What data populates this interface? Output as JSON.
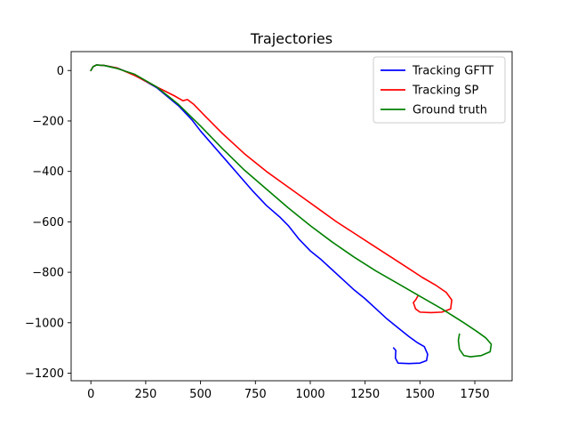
{
  "chart_data": {
    "type": "line",
    "title": "Trajectories",
    "xlabel": "",
    "ylabel": "",
    "xlim": [
      -90,
      1920
    ],
    "ylim": [
      -1230,
      75
    ],
    "xticks": [
      0,
      250,
      500,
      750,
      1000,
      1250,
      1500,
      1750
    ],
    "xtick_labels": [
      "0",
      "250",
      "500",
      "750",
      "1000",
      "1250",
      "1500",
      "1750"
    ],
    "yticks": [
      0,
      -200,
      -400,
      -600,
      -800,
      -1000,
      -1200
    ],
    "ytick_labels": [
      "0",
      "−200",
      "−400",
      "−600",
      "−800",
      "−1000",
      "−1200"
    ],
    "grid": false,
    "legend_position": "top-right",
    "series": [
      {
        "name": "Tracking GFTT",
        "color": "#0000ff",
        "points": [
          [
            0,
            0
          ],
          [
            10,
            15
          ],
          [
            25,
            22
          ],
          [
            60,
            20
          ],
          [
            120,
            10
          ],
          [
            200,
            -18
          ],
          [
            300,
            -68
          ],
          [
            400,
            -140
          ],
          [
            460,
            -195
          ],
          [
            500,
            -240
          ],
          [
            560,
            -300
          ],
          [
            620,
            -360
          ],
          [
            680,
            -420
          ],
          [
            740,
            -480
          ],
          [
            800,
            -535
          ],
          [
            860,
            -580
          ],
          [
            900,
            -615
          ],
          [
            950,
            -670
          ],
          [
            1000,
            -715
          ],
          [
            1050,
            -750
          ],
          [
            1100,
            -790
          ],
          [
            1150,
            -830
          ],
          [
            1200,
            -870
          ],
          [
            1250,
            -905
          ],
          [
            1300,
            -945
          ],
          [
            1350,
            -985
          ],
          [
            1400,
            -1020
          ],
          [
            1450,
            -1055
          ],
          [
            1490,
            -1080
          ],
          [
            1520,
            -1095
          ],
          [
            1535,
            -1125
          ],
          [
            1530,
            -1150
          ],
          [
            1500,
            -1160
          ],
          [
            1450,
            -1162
          ],
          [
            1400,
            -1160
          ],
          [
            1388,
            -1140
          ],
          [
            1390,
            -1110
          ],
          [
            1380,
            -1100
          ]
        ]
      },
      {
        "name": "Tracking SP",
        "color": "#ff0000",
        "points": [
          [
            0,
            0
          ],
          [
            10,
            15
          ],
          [
            25,
            22
          ],
          [
            60,
            20
          ],
          [
            120,
            10
          ],
          [
            200,
            -20
          ],
          [
            300,
            -65
          ],
          [
            380,
            -100
          ],
          [
            420,
            -120
          ],
          [
            440,
            -115
          ],
          [
            470,
            -135
          ],
          [
            520,
            -180
          ],
          [
            600,
            -250
          ],
          [
            700,
            -330
          ],
          [
            800,
            -400
          ],
          [
            880,
            -450
          ],
          [
            960,
            -500
          ],
          [
            1040,
            -550
          ],
          [
            1120,
            -600
          ],
          [
            1200,
            -645
          ],
          [
            1280,
            -690
          ],
          [
            1360,
            -735
          ],
          [
            1440,
            -780
          ],
          [
            1510,
            -820
          ],
          [
            1570,
            -850
          ],
          [
            1620,
            -880
          ],
          [
            1645,
            -910
          ],
          [
            1640,
            -945
          ],
          [
            1600,
            -958
          ],
          [
            1550,
            -960
          ],
          [
            1500,
            -958
          ],
          [
            1480,
            -945
          ],
          [
            1470,
            -920
          ],
          [
            1480,
            -910
          ],
          [
            1490,
            -895
          ]
        ]
      },
      {
        "name": "Ground truth",
        "color": "#008000",
        "points": [
          [
            0,
            0
          ],
          [
            10,
            15
          ],
          [
            25,
            22
          ],
          [
            60,
            20
          ],
          [
            120,
            8
          ],
          [
            200,
            -15
          ],
          [
            300,
            -65
          ],
          [
            400,
            -135
          ],
          [
            500,
            -220
          ],
          [
            600,
            -310
          ],
          [
            700,
            -395
          ],
          [
            800,
            -470
          ],
          [
            900,
            -545
          ],
          [
            1000,
            -615
          ],
          [
            1100,
            -680
          ],
          [
            1200,
            -740
          ],
          [
            1300,
            -795
          ],
          [
            1400,
            -845
          ],
          [
            1500,
            -895
          ],
          [
            1600,
            -945
          ],
          [
            1700,
            -1000
          ],
          [
            1760,
            -1035
          ],
          [
            1800,
            -1060
          ],
          [
            1825,
            -1085
          ],
          [
            1820,
            -1115
          ],
          [
            1780,
            -1130
          ],
          [
            1730,
            -1135
          ],
          [
            1700,
            -1130
          ],
          [
            1680,
            -1105
          ],
          [
            1675,
            -1070
          ],
          [
            1680,
            -1045
          ]
        ]
      }
    ]
  }
}
